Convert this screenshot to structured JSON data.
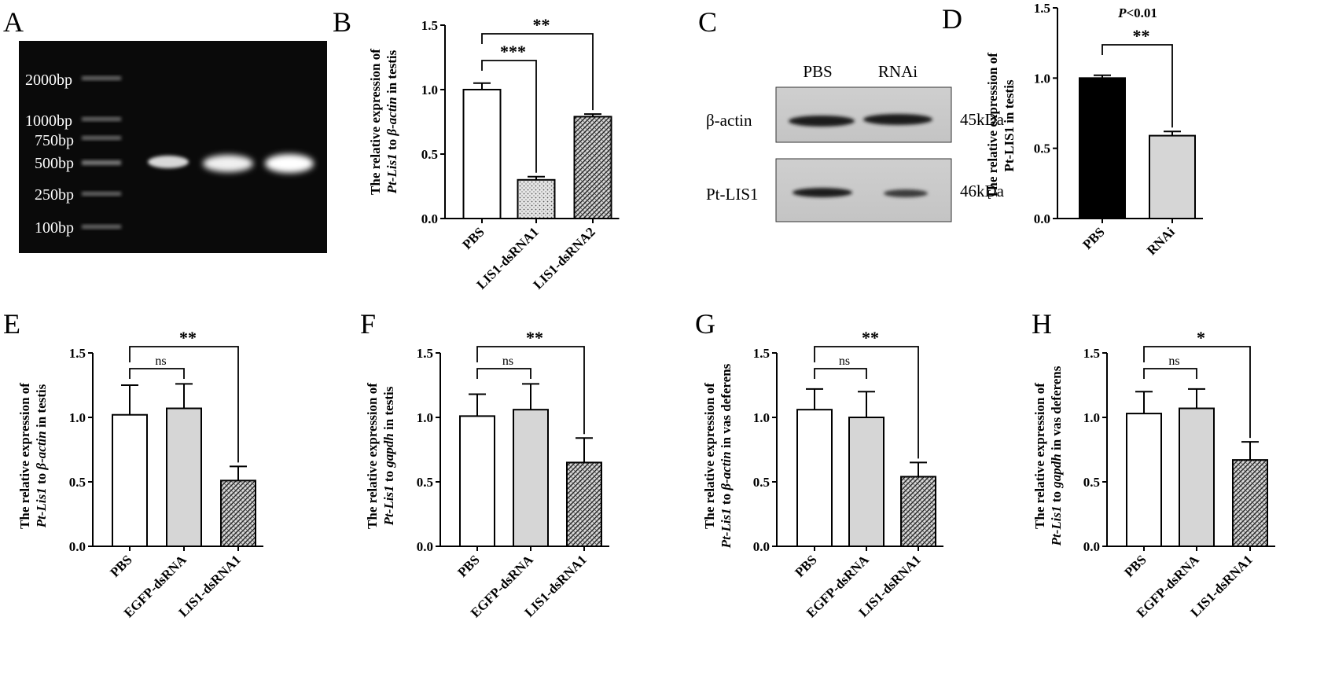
{
  "panels": {
    "A": {
      "letter": "A",
      "ladder": [
        "2000bp",
        "1000bp",
        "750bp",
        "500bp",
        "250bp",
        "100bp"
      ]
    },
    "C": {
      "letter": "C",
      "lanes": [
        "PBS",
        "RNAi"
      ],
      "rows": [
        {
          "label": "β-actin",
          "size": "45kDa"
        },
        {
          "label": "Pt-LIS1",
          "size": "46kDa"
        }
      ]
    }
  },
  "chart_data": [
    {
      "panel": "B",
      "type": "bar",
      "ylabel_lines": [
        [
          {
            "t": "The relative expression of",
            "i": false
          }
        ],
        [
          {
            "t": "Pt-Lis1",
            "i": true
          },
          {
            "t": " to ",
            "i": false
          },
          {
            "t": "β-actin",
            "i": true
          },
          {
            "t": " in testis",
            "i": false
          }
        ]
      ],
      "categories": [
        "PBS",
        "LIS1-dsRNA1",
        "LIS1-dsRNA2"
      ],
      "values": [
        1.0,
        0.3,
        0.79
      ],
      "errors": [
        0.05,
        0.025,
        0.02
      ],
      "fills": [
        "white",
        "dots",
        "hatch"
      ],
      "ylim": [
        0,
        1.5
      ],
      "yticks": [
        "0.0",
        "0.5",
        "1.0",
        "1.5"
      ],
      "brackets": [
        {
          "from": 0,
          "to": 1,
          "label": "***"
        },
        {
          "from": 0,
          "to": 2,
          "label": "**"
        }
      ]
    },
    {
      "panel": "D",
      "type": "bar",
      "ylabel_lines": [
        [
          {
            "t": "The relative expression of",
            "i": false
          }
        ],
        [
          {
            "t": "Pt-LIS1 in testis",
            "i": false
          }
        ]
      ],
      "categories": [
        "PBS",
        "RNAi"
      ],
      "values": [
        1.0,
        0.59
      ],
      "errors": [
        0.02,
        0.03
      ],
      "fills": [
        "black",
        "gray"
      ],
      "ylim": [
        0,
        1.5
      ],
      "yticks": [
        "0.0",
        "0.5",
        "1.0",
        "1.5"
      ],
      "brackets": [
        {
          "from": 0,
          "to": 1,
          "label": "**"
        }
      ],
      "annotation": {
        "italic": "P",
        "rest": "<0.01"
      }
    },
    {
      "panel": "E",
      "type": "bar",
      "ylabel_lines": [
        [
          {
            "t": "The relative expression of",
            "i": false
          }
        ],
        [
          {
            "t": "Pt-Lis1",
            "i": true
          },
          {
            "t": " to ",
            "i": false
          },
          {
            "t": "β-actin",
            "i": true
          },
          {
            "t": " in testis",
            "i": false
          }
        ]
      ],
      "categories": [
        "PBS",
        "EGFP-dsRNA",
        "LIS1-dsRNA1"
      ],
      "values": [
        1.02,
        1.07,
        0.51
      ],
      "errors": [
        0.23,
        0.19,
        0.11
      ],
      "fills": [
        "white",
        "gray",
        "hatch"
      ],
      "ylim": [
        0,
        1.5
      ],
      "yticks": [
        "0.0",
        "0.5",
        "1.0",
        "1.5"
      ],
      "brackets": [
        {
          "from": 0,
          "to": 1,
          "label": "ns"
        },
        {
          "from": 0,
          "to": 2,
          "label": "**"
        }
      ]
    },
    {
      "panel": "F",
      "type": "bar",
      "ylabel_lines": [
        [
          {
            "t": "The relative expression of",
            "i": false
          }
        ],
        [
          {
            "t": "Pt-Lis1",
            "i": true
          },
          {
            "t": " to ",
            "i": false
          },
          {
            "t": "gapdh",
            "i": true
          },
          {
            "t": " in testis",
            "i": false
          }
        ]
      ],
      "categories": [
        "PBS",
        "EGFP-dsRNA",
        "LIS1-dsRNA1"
      ],
      "values": [
        1.01,
        1.06,
        0.65
      ],
      "errors": [
        0.17,
        0.2,
        0.19
      ],
      "fills": [
        "white",
        "gray",
        "hatch"
      ],
      "ylim": [
        0,
        1.5
      ],
      "yticks": [
        "0.0",
        "0.5",
        "1.0",
        "1.5"
      ],
      "brackets": [
        {
          "from": 0,
          "to": 1,
          "label": "ns"
        },
        {
          "from": 0,
          "to": 2,
          "label": "**"
        }
      ]
    },
    {
      "panel": "G",
      "type": "bar",
      "ylabel_lines": [
        [
          {
            "t": "The relative expression of",
            "i": false
          }
        ],
        [
          {
            "t": "Pt-Lis1",
            "i": true
          },
          {
            "t": " to ",
            "i": false
          },
          {
            "t": "β-actin",
            "i": true
          },
          {
            "t": " in vas deferens",
            "i": false
          }
        ]
      ],
      "categories": [
        "PBS",
        "EGFP-dsRNA",
        "LIS1-dsRNA1"
      ],
      "values": [
        1.06,
        1.0,
        0.54
      ],
      "errors": [
        0.16,
        0.2,
        0.11
      ],
      "fills": [
        "white",
        "gray",
        "hatch"
      ],
      "ylim": [
        0,
        1.5
      ],
      "yticks": [
        "0.0",
        "0.5",
        "1.0",
        "1.5"
      ],
      "brackets": [
        {
          "from": 0,
          "to": 1,
          "label": "ns"
        },
        {
          "from": 0,
          "to": 2,
          "label": "**"
        }
      ]
    },
    {
      "panel": "H",
      "type": "bar",
      "ylabel_lines": [
        [
          {
            "t": "The relative expression of",
            "i": false
          }
        ],
        [
          {
            "t": "Pt-Lis1",
            "i": true
          },
          {
            "t": " to ",
            "i": false
          },
          {
            "t": "gapdh",
            "i": true
          },
          {
            "t": " in vas deferens",
            "i": false
          }
        ]
      ],
      "categories": [
        "PBS",
        "EGFP-dsRNA",
        "LIS1-dsRNA1"
      ],
      "values": [
        1.03,
        1.07,
        0.67
      ],
      "errors": [
        0.17,
        0.15,
        0.14
      ],
      "fills": [
        "white",
        "gray",
        "hatch"
      ],
      "ylim": [
        0,
        1.5
      ],
      "yticks": [
        "0.0",
        "0.5",
        "1.0",
        "1.5"
      ],
      "brackets": [
        {
          "from": 0,
          "to": 1,
          "label": "ns"
        },
        {
          "from": 0,
          "to": 2,
          "label": "*"
        }
      ]
    }
  ]
}
